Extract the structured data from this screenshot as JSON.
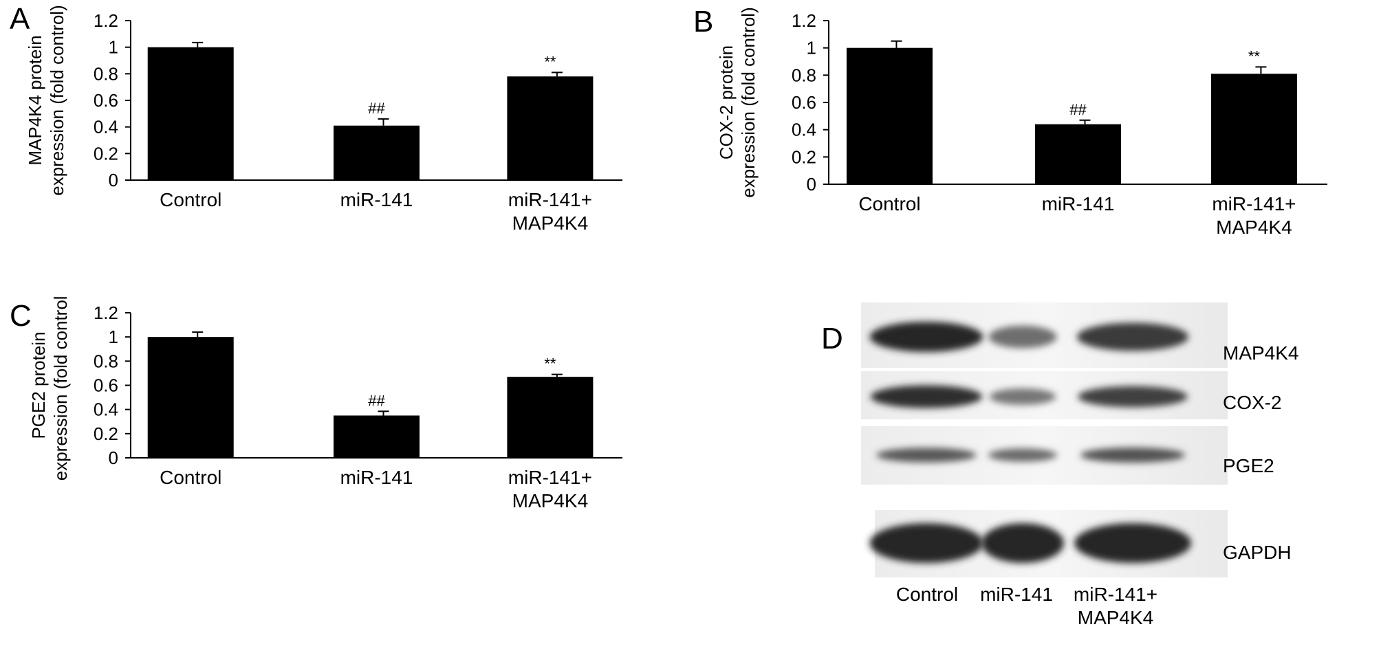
{
  "panels": {
    "A": {
      "letter": "A",
      "ylabel_line1": "MAP4K4 protein",
      "ylabel_line2": "expression (fold control)"
    },
    "B": {
      "letter": "B",
      "ylabel_line1": "COX-2 protein",
      "ylabel_line2": "expression (fold control)"
    },
    "C": {
      "letter": "C",
      "ylabel_line1": "PGE2 protein",
      "ylabel_line2": "expression (fold control)"
    },
    "D": {
      "letter": "D",
      "bands": [
        "MAP4K4",
        "COX-2",
        "PGE2",
        "GAPDH"
      ],
      "lanes": [
        "Control",
        "miR-141",
        "miR-141+",
        "MAP4K4"
      ],
      "band_intensity": {
        "MAP4K4": [
          1.0,
          0.42,
          0.85
        ],
        "COX-2": [
          0.95,
          0.35,
          0.8
        ],
        "PGE2": [
          0.6,
          0.45,
          0.65
        ],
        "GAPDH": [
          1.0,
          1.0,
          1.0
        ]
      }
    }
  },
  "chart_data": [
    {
      "id": "A",
      "type": "bar",
      "categories": [
        "Control",
        "miR-141",
        "miR-141+\nMAP4K4"
      ],
      "values": [
        1.0,
        0.41,
        0.78
      ],
      "errors": [
        0.035,
        0.05,
        0.03
      ],
      "annotations": [
        "",
        "##",
        "**"
      ],
      "ylabel": "MAP4K4 protein expression (fold control)",
      "ylim": [
        0,
        1.2
      ],
      "yticks": [
        0,
        0.2,
        0.4,
        0.6,
        0.8,
        1,
        1.2
      ],
      "grid": false,
      "bar_color": "#000000"
    },
    {
      "id": "B",
      "type": "bar",
      "categories": [
        "Control",
        "miR-141",
        "miR-141+\nMAP4K4"
      ],
      "values": [
        1.0,
        0.44,
        0.81
      ],
      "errors": [
        0.05,
        0.03,
        0.05
      ],
      "annotations": [
        "",
        "##",
        "**"
      ],
      "ylabel": "COX-2 protein expression (fold control)",
      "ylim": [
        0,
        1.2
      ],
      "yticks": [
        0,
        0.2,
        0.4,
        0.6,
        0.8,
        1,
        1.2
      ],
      "grid": false,
      "bar_color": "#000000"
    },
    {
      "id": "C",
      "type": "bar",
      "categories": [
        "Control",
        "miR-141",
        "miR-141+\nMAP4K4"
      ],
      "values": [
        1.0,
        0.35,
        0.67
      ],
      "errors": [
        0.04,
        0.035,
        0.02
      ],
      "annotations": [
        "",
        "##",
        "**"
      ],
      "ylabel": "PGE2 protein expression (fold control)",
      "ylim": [
        0,
        1.2
      ],
      "yticks": [
        0,
        0.2,
        0.4,
        0.6,
        0.8,
        1,
        1.2
      ],
      "grid": false,
      "bar_color": "#000000"
    }
  ]
}
